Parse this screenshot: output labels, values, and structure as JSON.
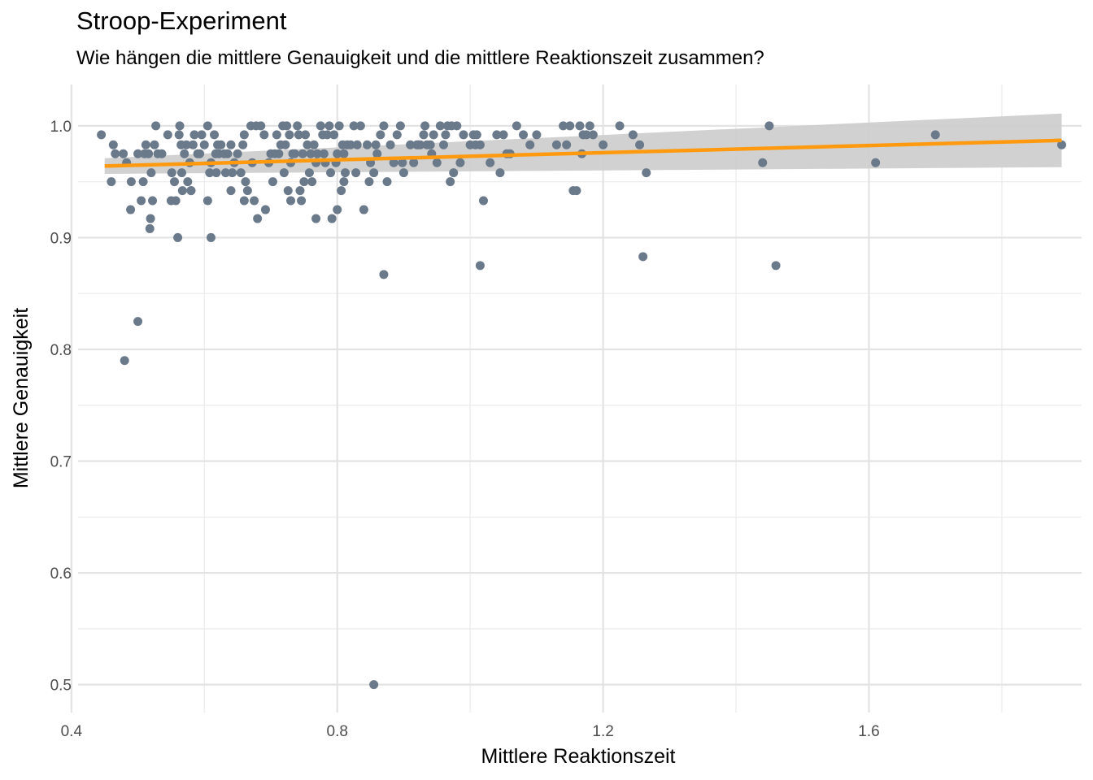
{
  "chart_data": {
    "type": "scatter",
    "title": "Stroop-Experiment",
    "subtitle": "Wie hängen die mittlere Genauigkeit und die mittlere Reaktionszeit zusammen?",
    "xlabel": "Mittlere Reaktionszeit",
    "ylabel": "Mittlere Genauigkeit",
    "xlim": [
      0.41,
      1.92
    ],
    "ylim": [
      0.475,
      1.037
    ],
    "x_ticks": [
      0.4,
      0.8,
      1.2,
      1.6
    ],
    "x_tick_labels": [
      "0.4",
      "0.8",
      "1.2",
      "1.6"
    ],
    "y_ticks": [
      0.5,
      0.6,
      0.7,
      0.8,
      0.9,
      1.0
    ],
    "y_tick_labels": [
      "0.5",
      "0.6",
      "0.7",
      "0.8",
      "0.9",
      "1.0"
    ],
    "grid": true,
    "legend": "none",
    "point_color": "#6b7a8a",
    "line_color": "#ff9a10",
    "band_color": "#cccccc",
    "regression": {
      "x": [
        0.45,
        1.89
      ],
      "y": [
        0.964,
        0.987
      ]
    },
    "confidence_band": {
      "x": [
        0.45,
        1.89
      ],
      "lower": [
        0.957,
        0.963
      ],
      "upper": [
        0.971,
        1.011
      ]
    },
    "points": [
      [
        0.445,
        0.992
      ],
      [
        0.463,
        0.983
      ],
      [
        0.466,
        0.975
      ],
      [
        0.478,
        0.975
      ],
      [
        0.483,
        0.967
      ],
      [
        0.489,
        0.925
      ],
      [
        0.49,
        0.95
      ],
      [
        0.5,
        0.975
      ],
      [
        0.505,
        0.933
      ],
      [
        0.508,
        0.95
      ],
      [
        0.51,
        0.975
      ],
      [
        0.512,
        0.983
      ],
      [
        0.516,
        0.975
      ],
      [
        0.518,
        0.908
      ],
      [
        0.519,
        0.917
      ],
      [
        0.52,
        0.958
      ],
      [
        0.522,
        0.933
      ],
      [
        0.525,
        0.983
      ],
      [
        0.527,
        1.0
      ],
      [
        0.53,
        0.975
      ],
      [
        0.536,
        0.975
      ],
      [
        0.545,
        0.992
      ],
      [
        0.55,
        0.933
      ],
      [
        0.551,
        0.958
      ],
      [
        0.555,
        0.95
      ],
      [
        0.557,
        0.933
      ],
      [
        0.562,
        0.992
      ],
      [
        0.563,
        1.0
      ],
      [
        0.565,
        0.983
      ],
      [
        0.566,
        0.958
      ],
      [
        0.567,
        0.942
      ],
      [
        0.57,
        0.975
      ],
      [
        0.573,
        0.983
      ],
      [
        0.575,
        0.95
      ],
      [
        0.578,
        0.967
      ],
      [
        0.58,
        0.942
      ],
      [
        0.583,
        0.983
      ],
      [
        0.585,
        0.992
      ],
      [
        0.59,
        0.975
      ],
      [
        0.593,
        0.975
      ],
      [
        0.596,
        0.992
      ],
      [
        0.6,
        0.983
      ],
      [
        0.605,
        1.0
      ],
      [
        0.608,
        0.958
      ],
      [
        0.61,
        0.967
      ],
      [
        0.615,
        0.992
      ],
      [
        0.617,
        0.975
      ],
      [
        0.618,
        0.958
      ],
      [
        0.62,
        0.983
      ],
      [
        0.622,
        0.975
      ],
      [
        0.625,
        0.983
      ],
      [
        0.63,
        0.975
      ],
      [
        0.632,
        0.958
      ],
      [
        0.635,
        0.975
      ],
      [
        0.64,
        0.983
      ],
      [
        0.642,
        0.958
      ],
      [
        0.645,
        0.967
      ],
      [
        0.65,
        0.975
      ],
      [
        0.655,
        0.958
      ],
      [
        0.658,
        0.983
      ],
      [
        0.66,
        0.992
      ],
      [
        0.662,
        0.95
      ],
      [
        0.665,
        0.942
      ],
      [
        0.67,
        1.0
      ],
      [
        0.672,
        0.967
      ],
      [
        0.675,
        0.933
      ],
      [
        0.678,
        1.0
      ],
      [
        0.68,
        0.917
      ],
      [
        0.685,
        1.0
      ],
      [
        0.69,
        0.992
      ],
      [
        0.692,
        0.925
      ],
      [
        0.697,
        0.967
      ],
      [
        0.7,
        0.975
      ],
      [
        0.703,
        0.95
      ],
      [
        0.706,
        0.975
      ],
      [
        0.709,
        0.992
      ],
      [
        0.712,
        0.975
      ],
      [
        0.715,
        0.983
      ],
      [
        0.718,
        1.0
      ],
      [
        0.72,
        0.958
      ],
      [
        0.722,
        0.983
      ],
      [
        0.724,
        1.0
      ],
      [
        0.726,
        0.942
      ],
      [
        0.728,
        0.992
      ],
      [
        0.73,
        0.967
      ],
      [
        0.733,
        0.975
      ],
      [
        0.736,
        0.975
      ],
      [
        0.74,
        1.0
      ],
      [
        0.742,
        0.992
      ],
      [
        0.744,
        0.942
      ],
      [
        0.746,
        0.933
      ],
      [
        0.748,
        0.975
      ],
      [
        0.75,
        0.95
      ],
      [
        0.752,
        0.992
      ],
      [
        0.755,
        0.983
      ],
      [
        0.758,
        0.958
      ],
      [
        0.76,
        0.975
      ],
      [
        0.762,
        0.95
      ],
      [
        0.765,
        0.983
      ],
      [
        0.768,
        0.967
      ],
      [
        0.77,
        0.975
      ],
      [
        0.775,
        1.0
      ],
      [
        0.778,
        0.992
      ],
      [
        0.78,
        0.975
      ],
      [
        0.782,
        0.967
      ],
      [
        0.785,
        0.992
      ],
      [
        0.788,
        1.0
      ],
      [
        0.79,
        0.958
      ],
      [
        0.792,
        0.917
      ],
      [
        0.795,
        0.992
      ],
      [
        0.798,
        0.967
      ],
      [
        0.8,
        0.975
      ],
      [
        0.803,
        1.0
      ],
      [
        0.806,
        0.942
      ],
      [
        0.808,
        0.983
      ],
      [
        0.81,
        0.975
      ],
      [
        0.812,
        0.958
      ],
      [
        0.815,
        0.983
      ],
      [
        0.82,
        0.983
      ],
      [
        0.825,
        1.0
      ],
      [
        0.828,
        0.958
      ],
      [
        0.83,
        0.983
      ],
      [
        0.835,
        1.0
      ],
      [
        0.84,
        0.925
      ],
      [
        0.845,
        0.983
      ],
      [
        0.848,
        0.95
      ],
      [
        0.85,
        0.967
      ],
      [
        0.855,
        0.958
      ],
      [
        0.858,
        0.983
      ],
      [
        0.86,
        0.975
      ],
      [
        0.865,
        0.992
      ],
      [
        0.87,
        1.0
      ],
      [
        0.875,
        0.95
      ],
      [
        0.88,
        0.983
      ],
      [
        0.885,
        0.967
      ],
      [
        0.89,
        0.992
      ],
      [
        0.895,
        1.0
      ],
      [
        0.898,
        0.967
      ],
      [
        0.9,
        0.958
      ],
      [
        0.91,
        0.983
      ],
      [
        0.915,
        0.967
      ],
      [
        0.92,
        0.983
      ],
      [
        0.922,
        0.983
      ],
      [
        0.925,
        0.983
      ],
      [
        0.93,
        0.992
      ],
      [
        0.932,
        1.0
      ],
      [
        0.935,
        0.983
      ],
      [
        0.94,
        0.983
      ],
      [
        0.942,
        0.975
      ],
      [
        0.945,
        0.992
      ],
      [
        0.95,
        0.967
      ],
      [
        0.955,
        1.0
      ],
      [
        0.96,
        0.983
      ],
      [
        0.963,
        0.992
      ],
      [
        0.966,
        1.0
      ],
      [
        0.97,
        0.95
      ],
      [
        0.972,
        1.0
      ],
      [
        0.975,
        0.958
      ],
      [
        0.98,
        1.0
      ],
      [
        0.99,
        0.992
      ],
      [
        1.0,
        0.983
      ],
      [
        0.985,
        0.967
      ],
      [
        1.005,
        0.992
      ],
      [
        1.008,
        0.983
      ],
      [
        1.01,
        0.992
      ],
      [
        1.015,
        0.983
      ],
      [
        1.02,
        0.933
      ],
      [
        1.03,
        0.967
      ],
      [
        1.04,
        0.992
      ],
      [
        1.045,
        0.958
      ],
      [
        1.05,
        0.992
      ],
      [
        1.055,
        0.975
      ],
      [
        1.06,
        0.975
      ],
      [
        1.07,
        1.0
      ],
      [
        1.08,
        0.992
      ],
      [
        1.09,
        0.983
      ],
      [
        1.1,
        0.992
      ],
      [
        1.13,
        0.983
      ],
      [
        1.14,
        1.0
      ],
      [
        1.145,
        0.983
      ],
      [
        1.15,
        1.0
      ],
      [
        1.155,
        0.942
      ],
      [
        1.16,
        0.942
      ],
      [
        1.165,
        1.0
      ],
      [
        1.168,
        0.975
      ],
      [
        1.17,
        0.992
      ],
      [
        1.175,
        0.992
      ],
      [
        1.18,
        1.0
      ],
      [
        1.185,
        0.992
      ],
      [
        1.2,
        0.983
      ],
      [
        1.225,
        1.0
      ],
      [
        1.245,
        0.992
      ],
      [
        1.255,
        0.983
      ],
      [
        1.265,
        0.958
      ],
      [
        0.5,
        0.825
      ],
      [
        0.48,
        0.79
      ],
      [
        0.56,
        0.9
      ],
      [
        0.61,
        0.9
      ],
      [
        0.87,
        0.867
      ],
      [
        1.015,
        0.875
      ],
      [
        1.26,
        0.883
      ],
      [
        1.46,
        0.875
      ],
      [
        0.855,
        0.5
      ],
      [
        1.44,
        0.967
      ],
      [
        1.45,
        1.0
      ],
      [
        1.61,
        0.967
      ],
      [
        1.7,
        0.992
      ],
      [
        1.89,
        0.983
      ],
      [
        0.46,
        0.95
      ],
      [
        0.73,
        0.933
      ],
      [
        0.768,
        0.917
      ],
      [
        0.8,
        0.925
      ],
      [
        0.81,
        0.95
      ],
      [
        0.66,
        0.933
      ],
      [
        0.64,
        0.942
      ],
      [
        0.605,
        0.933
      ],
      [
        0.58,
        0.942
      ]
    ]
  }
}
